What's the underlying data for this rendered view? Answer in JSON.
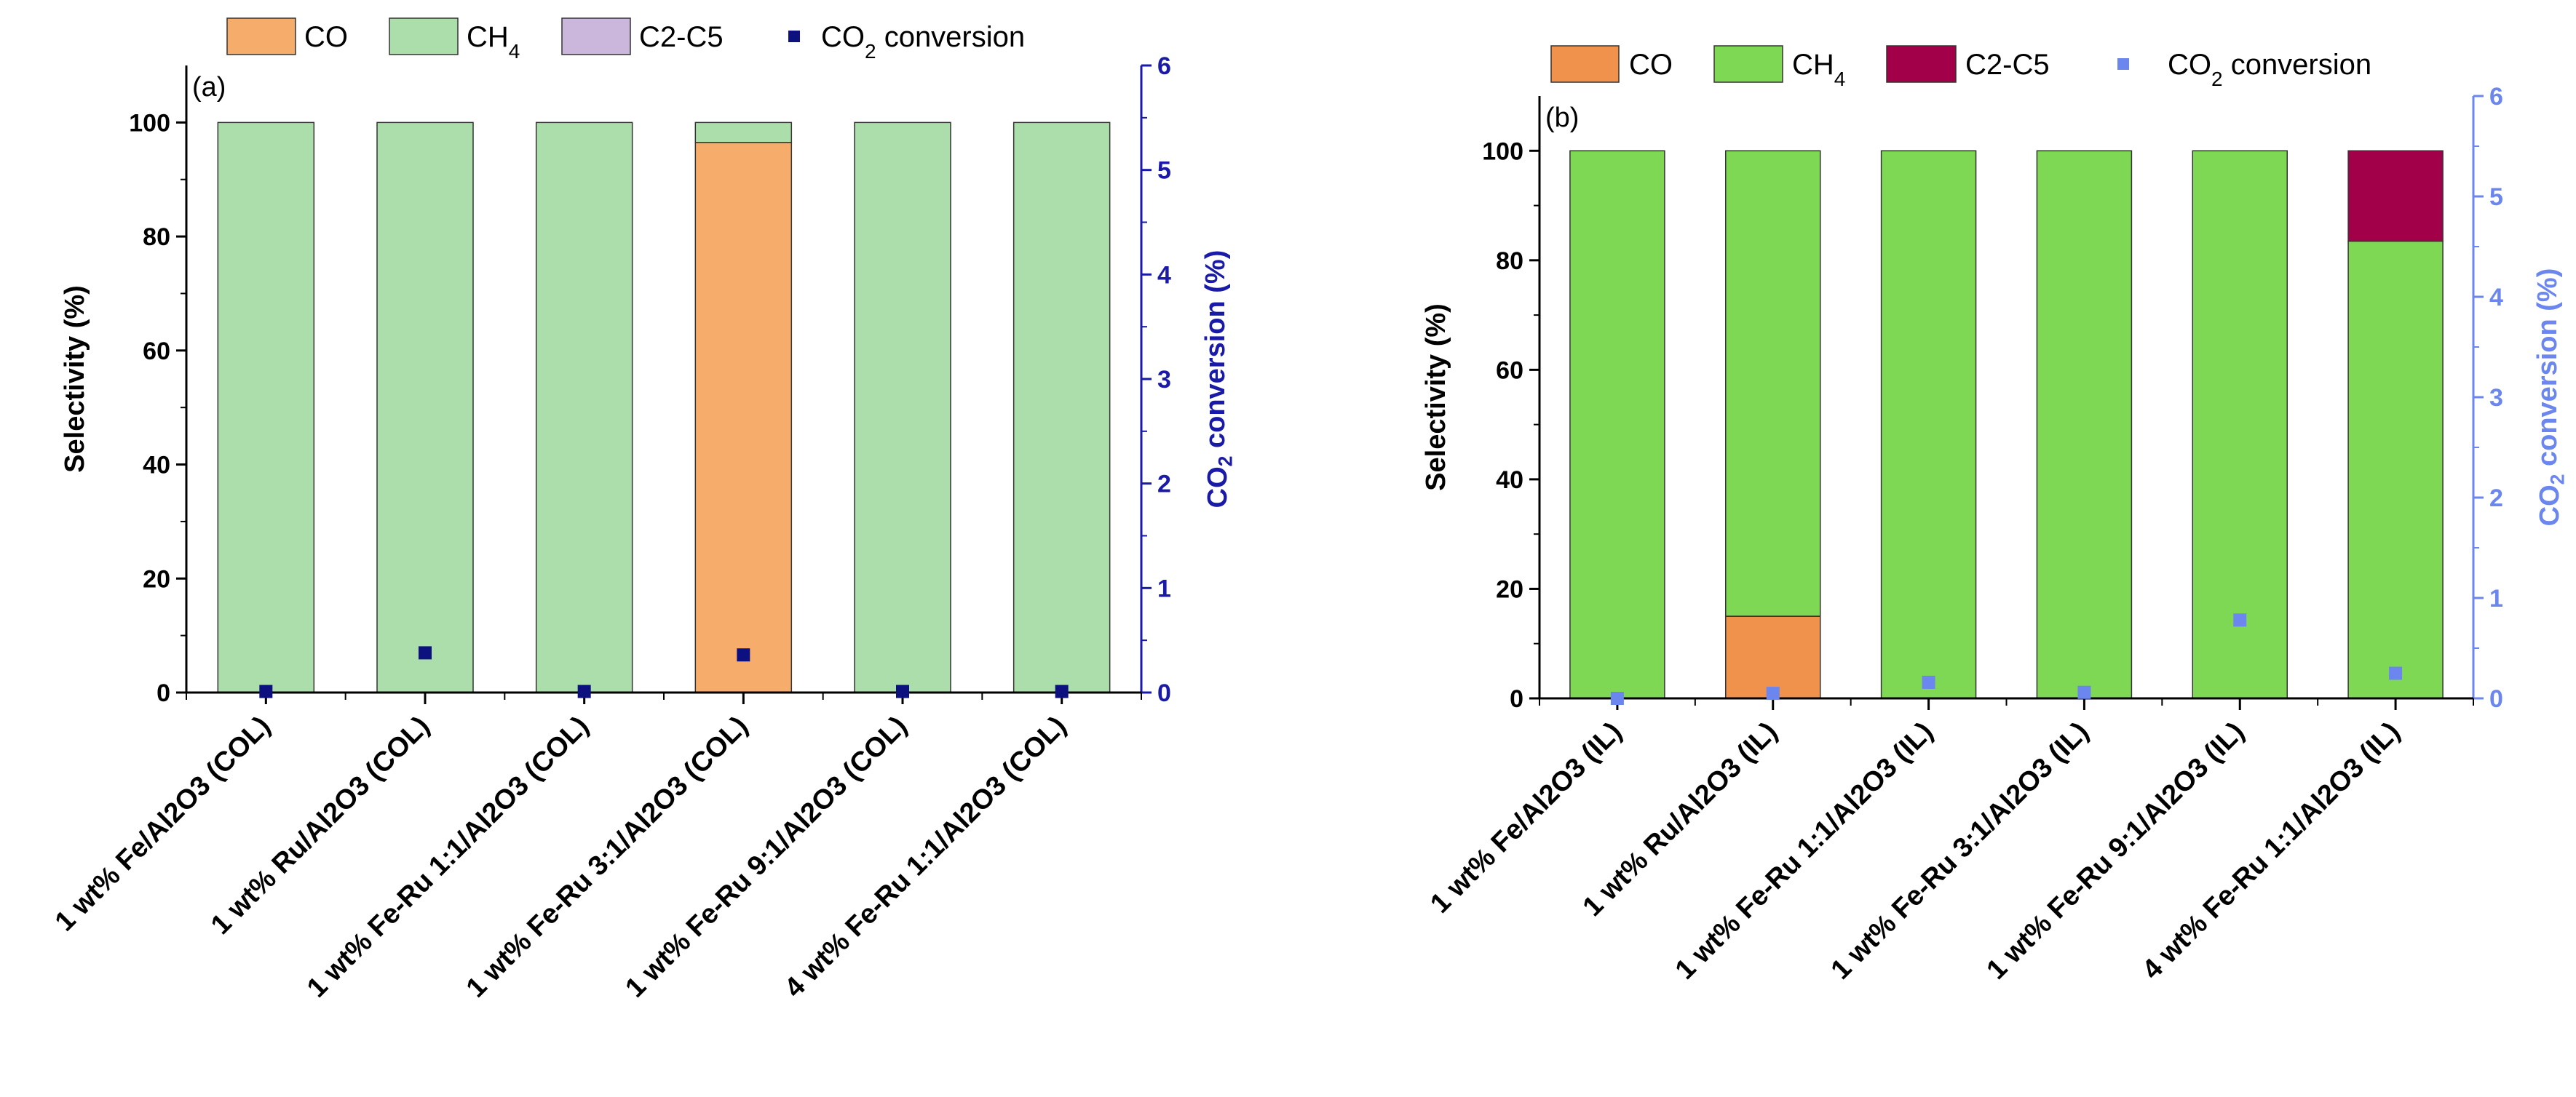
{
  "chart_data": [
    {
      "type": "bar",
      "panel_label": "(a)",
      "stacked": true,
      "categories": [
        "1 wt% Fe/Al2O3 (COL)",
        "1 wt% Ru/Al2O3 (COL)",
        "1 wt% Fe-Ru 1:1/Al2O3 (COL)",
        "1 wt% Fe-Ru 3:1/Al2O3 (COL)",
        "1 wt% Fe-Ru 9:1/Al2O3 (COL)",
        "4 wt% Fe-Ru 1:1/Al2O3 (COL)"
      ],
      "series": [
        {
          "name": "CO",
          "values": [
            0,
            0,
            0,
            96.5,
            0,
            0
          ],
          "color": "#f6ad6c"
        },
        {
          "name": "CH4",
          "values": [
            100,
            100,
            100,
            3.5,
            100,
            100
          ],
          "color": "#acdeac"
        },
        {
          "name": "C2-C5",
          "values": [
            0,
            0,
            0,
            0,
            0,
            0
          ],
          "color": "#cbb7db"
        }
      ],
      "secondary_series": {
        "name": "CO2 conversion",
        "values": [
          0.01,
          0.38,
          0.01,
          0.36,
          0.01,
          0.01
        ],
        "color": "#0d1180"
      },
      "legend_labels": [
        "CO",
        "CH4",
        "C2-C5",
        "CO2 conversion"
      ],
      "ylabel": "Selectivity (%)",
      "y2label": "CO2 conversion (%)",
      "ylim": [
        0,
        110
      ],
      "y2lim": [
        0,
        6
      ],
      "yticks": [
        0,
        20,
        40,
        60,
        80,
        100
      ],
      "y2ticks": [
        0,
        1,
        2,
        3,
        4,
        5,
        6
      ],
      "y2_color": "#1a1aa8",
      "grid": false,
      "legend_position": "top"
    },
    {
      "type": "bar",
      "panel_label": "(b)",
      "stacked": true,
      "categories": [
        "1 wt% Fe/Al2O3 (IL)",
        "1 wt% Ru/Al2O3 (IL)",
        "1 wt% Fe-Ru 1:1/Al2O3 (IL)",
        "1 wt% Fe-Ru 3:1/Al2O3 (IL)",
        "1 wt% Fe-Ru 9:1/Al2O3 (IL)",
        "4 wt% Fe-Ru 1:1/Al2O3 (IL)"
      ],
      "series": [
        {
          "name": "CO",
          "values": [
            0,
            15,
            0,
            0,
            0,
            0
          ],
          "color": "#f0914c"
        },
        {
          "name": "CH4",
          "values": [
            100,
            85,
            100,
            100,
            100,
            83.5
          ],
          "color": "#7ed854"
        },
        {
          "name": "C2-C5",
          "values": [
            0,
            0,
            0,
            0,
            0,
            16.5
          ],
          "color": "#a3004a"
        }
      ],
      "secondary_series": {
        "name": "CO2 conversion",
        "values": [
          0.0,
          0.05,
          0.16,
          0.06,
          0.78,
          0.25
        ],
        "color": "#6b86ee"
      },
      "legend_labels": [
        "CO",
        "CH4",
        "C2-C5",
        "CO2 conversion"
      ],
      "ylabel": "Selectivity (%)",
      "y2label": "CO2 conversion (%)",
      "ylim": [
        0,
        110
      ],
      "y2lim": [
        0,
        6
      ],
      "yticks": [
        0,
        20,
        40,
        60,
        80,
        100
      ],
      "y2ticks": [
        0,
        1,
        2,
        3,
        4,
        5,
        6
      ],
      "y2_color": "#6b86ee",
      "grid": false,
      "legend_position": "top"
    }
  ]
}
